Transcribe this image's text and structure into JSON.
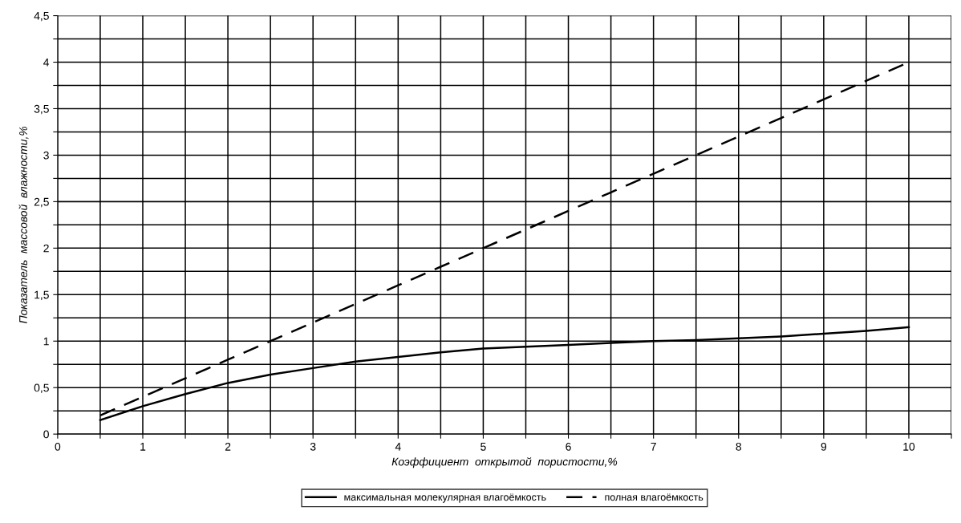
{
  "chart_data": {
    "type": "line",
    "xlabel": "Коэффициент  открытой  пористости,%",
    "ylabel": "Показатель  массовой  влажности,%",
    "x": [
      0.5,
      1,
      1.5,
      2,
      2.5,
      3,
      3.5,
      4,
      4.5,
      5,
      5.5,
      6,
      6.5,
      7,
      7.5,
      8,
      8.5,
      9,
      9.5,
      10
    ],
    "series": [
      {
        "name": "максимальная молекулярная влагоёмкость",
        "color": "#000000",
        "line_style": "solid",
        "values": [
          0.15,
          0.3,
          0.43,
          0.55,
          0.64,
          0.71,
          0.78,
          0.83,
          0.88,
          0.92,
          0.94,
          0.96,
          0.98,
          1.0,
          1.01,
          1.03,
          1.05,
          1.08,
          1.11,
          1.15
        ]
      },
      {
        "name": "полная влагоёмкость",
        "color": "#000000",
        "line_style": "dashed",
        "values": [
          0.2,
          0.4,
          0.6,
          0.8,
          1.0,
          1.2,
          1.4,
          1.6,
          1.8,
          2.0,
          2.2,
          2.4,
          2.6,
          2.8,
          3.0,
          3.2,
          3.4,
          3.6,
          3.8,
          4.0
        ]
      }
    ],
    "xlim": [
      0,
      10.5
    ],
    "xticks": [
      0,
      {
        "value": 0.5,
        "label": null
      },
      1,
      {
        "value": 1.5,
        "label": null
      },
      2,
      {
        "value": 2.5,
        "label": null
      },
      3,
      {
        "value": 3.5,
        "label": null
      },
      4,
      {
        "value": 4.5,
        "label": null
      },
      5,
      {
        "value": 5.5,
        "label": null
      },
      6,
      {
        "value": 6.5,
        "label": null
      },
      7,
      {
        "value": 7.5,
        "label": null
      },
      8,
      {
        "value": 8.5,
        "label": null
      },
      9,
      {
        "value": 9.5,
        "label": null
      },
      10,
      {
        "value": 10.5,
        "label": null
      }
    ],
    "ylim": [
      0,
      4.5
    ],
    "yticks": [
      {
        "value": 0,
        "label": "0"
      },
      {
        "value": 0.25,
        "label": null
      },
      {
        "value": 0.5,
        "label": "0,5"
      },
      {
        "value": 0.75,
        "label": null
      },
      {
        "value": 1,
        "label": "1"
      },
      {
        "value": 1.25,
        "label": null
      },
      {
        "value": 1.5,
        "label": "1,5"
      },
      {
        "value": 1.75,
        "label": null
      },
      {
        "value": 2,
        "label": "2"
      },
      {
        "value": 2.25,
        "label": null
      },
      {
        "value": 2.5,
        "label": "2,5"
      },
      {
        "value": 2.75,
        "label": null
      },
      {
        "value": 3,
        "label": "3"
      },
      {
        "value": 3.25,
        "label": null
      },
      {
        "value": 3.5,
        "label": "3,5"
      },
      {
        "value": 3.75,
        "label": null
      },
      {
        "value": 4,
        "label": "4"
      },
      {
        "value": 4.25,
        "label": null
      },
      {
        "value": 4.5,
        "label": "4,5"
      }
    ],
    "grid": true,
    "legend": "bottom",
    "marker": "none"
  }
}
